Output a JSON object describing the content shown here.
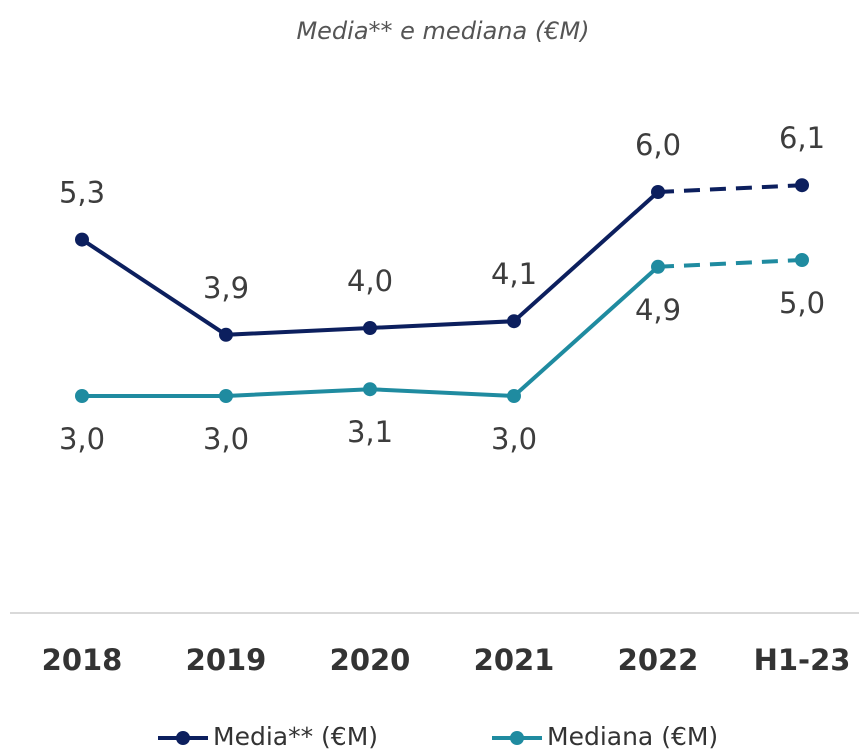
{
  "chart_data": {
    "type": "line",
    "title": "Media** e mediana (€M)",
    "categories": [
      "2018",
      "2019",
      "2020",
      "2021",
      "2022",
      "H1-23"
    ],
    "ylim": [
      0,
      8
    ],
    "series": [
      {
        "name": "Media** (€M)",
        "color": "#0c1f5e",
        "values": [
          5.3,
          3.9,
          4.0,
          4.1,
          6.0,
          6.1
        ],
        "value_labels": [
          "5,3",
          "3,9",
          "4,0",
          "4,1",
          "6,0",
          "6,1"
        ]
      },
      {
        "name": "Mediana (€M)",
        "color": "#1f8ba0",
        "values": [
          3.0,
          3.0,
          3.1,
          3.0,
          4.9,
          5.0
        ],
        "value_labels": [
          "3,0",
          "3,0",
          "3,1",
          "3,0",
          "4,9",
          "5,0"
        ]
      }
    ]
  }
}
